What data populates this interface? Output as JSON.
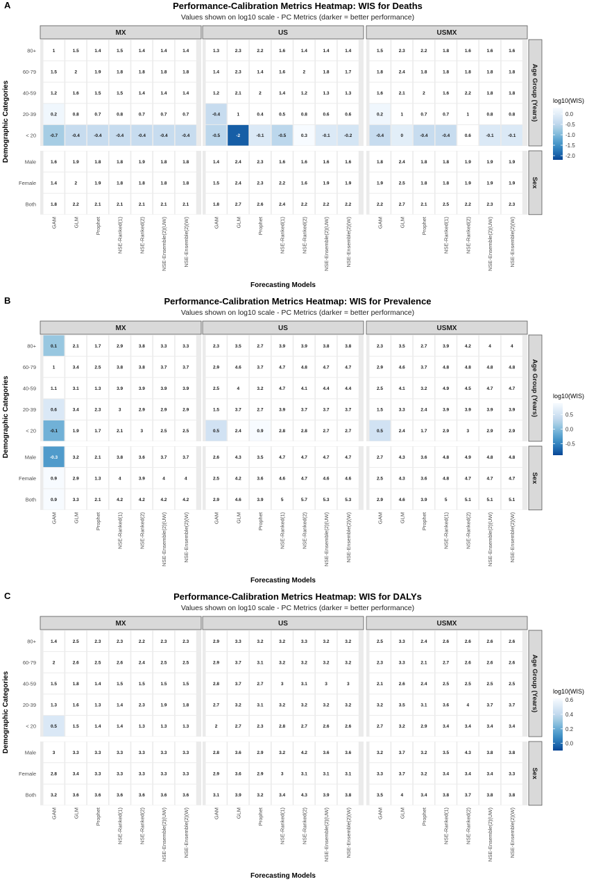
{
  "chart_data": [
    {
      "type": "heatmap",
      "panel_letter": "A",
      "title": "Performance-Calibration Metrics Heatmap: WIS for Deaths",
      "subtitle": "Values shown on log10 scale - PC Metrics (darker = better performance)",
      "xlabel": "Forecasting Models",
      "ylabel": "Demographic Categories",
      "legend_title": "log10(WIS)",
      "legend_ticks": [
        "0.0",
        "-0.5",
        "-1.0",
        "-1.5",
        "-2.0"
      ],
      "range": [
        -2.2,
        0.3
      ],
      "facets": [
        "MX",
        "US",
        "USMX"
      ],
      "row_groups": [
        {
          "label": "Age Group (Years)",
          "rows": [
            "80+",
            "60-79",
            "40-59",
            "20-39",
            "< 20"
          ]
        },
        {
          "label": "Sex",
          "rows": [
            "Male",
            "Female",
            "Both"
          ]
        }
      ],
      "models": [
        "GAM",
        "GLM",
        "Prophet",
        "NSE-Ranked(1)",
        "NSE-Ranked(2)",
        "NSE-Ensemble(2)(UW)",
        "NSE-Ensemble(2)(W)"
      ],
      "values": {
        "MX": [
          [
            1,
            1.5,
            1.4,
            1.5,
            1.4,
            1.4,
            1.4
          ],
          [
            1.5,
            2,
            1.9,
            1.8,
            1.8,
            1.8,
            1.8
          ],
          [
            1.2,
            1.6,
            1.5,
            1.5,
            1.4,
            1.4,
            1.4
          ],
          [
            0.2,
            0.8,
            0.7,
            0.8,
            0.7,
            0.7,
            0.7
          ],
          [
            -0.7,
            -0.4,
            -0.4,
            -0.4,
            -0.4,
            -0.4,
            -0.4
          ],
          [
            1.6,
            1.9,
            1.8,
            1.8,
            1.9,
            1.8,
            1.8
          ],
          [
            1.4,
            2,
            1.9,
            1.8,
            1.8,
            1.8,
            1.8
          ],
          [
            1.8,
            2.2,
            2.1,
            2.1,
            2.1,
            2.1,
            2.1
          ]
        ],
        "US": [
          [
            1.3,
            2.3,
            2.2,
            1.6,
            1.4,
            1.4,
            1.4
          ],
          [
            1.4,
            2.3,
            1.4,
            1.6,
            2,
            1.8,
            1.7
          ],
          [
            1.2,
            2.1,
            2,
            1.4,
            1.2,
            1.3,
            1.3
          ],
          [
            -0.4,
            1,
            0.4,
            0.5,
            0.8,
            0.6,
            0.6
          ],
          [
            -0.5,
            -2,
            -0.1,
            -0.5,
            0.3,
            -0.1,
            -0.2
          ],
          [
            1.4,
            2.4,
            2.3,
            1.6,
            1.6,
            1.6,
            1.6
          ],
          [
            1.5,
            2.4,
            2.3,
            2.2,
            1.6,
            1.9,
            1.9
          ],
          [
            1.8,
            2.7,
            2.6,
            2.4,
            2.2,
            2.2,
            2.2
          ]
        ],
        "USMX": [
          [
            1.5,
            2.3,
            2.2,
            1.8,
            1.6,
            1.6,
            1.6
          ],
          [
            1.8,
            2.4,
            1.8,
            1.8,
            1.8,
            1.8,
            1.8
          ],
          [
            1.6,
            2.1,
            2,
            1.6,
            2.2,
            1.8,
            1.8
          ],
          [
            0.2,
            1,
            0.7,
            0.7,
            1,
            0.8,
            0.8
          ],
          [
            -0.4,
            0,
            -0.4,
            -0.4,
            0.6,
            -0.1,
            -0.1
          ],
          [
            1.8,
            2.4,
            1.8,
            1.8,
            1.9,
            1.9,
            1.9
          ],
          [
            1.9,
            2.5,
            1.8,
            1.8,
            1.9,
            1.9,
            1.9
          ],
          [
            2.2,
            2.7,
            2.1,
            2.5,
            2.2,
            2.3,
            2.3
          ]
        ]
      }
    },
    {
      "type": "heatmap",
      "panel_letter": "B",
      "title": "Performance-Calibration Metrics Heatmap: WIS for Prevalence",
      "subtitle": "Values shown on log10 scale - PC Metrics (darker = better performance)",
      "xlabel": "Forecasting Models",
      "ylabel": "Demographic Categories",
      "legend_title": "log10(WIS)",
      "legend_ticks": [
        "0.5",
        "0.0",
        "-0.5"
      ],
      "range": [
        -0.9,
        0.9
      ],
      "facets": [
        "MX",
        "US",
        "USMX"
      ],
      "row_groups": [
        {
          "label": "Age Group (Years)",
          "rows": [
            "80+",
            "60-79",
            "40-59",
            "20-39",
            "< 20"
          ]
        },
        {
          "label": "Sex",
          "rows": [
            "Male",
            "Female",
            "Both"
          ]
        }
      ],
      "models": [
        "GAM",
        "GLM",
        "Prophet",
        "NSE-Ranked(1)",
        "NSE-Ranked(2)",
        "NSE-Ensemble(2)(UW)",
        "NSE-Ensemble(2)(W)"
      ],
      "values": {
        "MX": [
          [
            0.1,
            2.1,
            1.7,
            2.9,
            3.8,
            3.3,
            3.3
          ],
          [
            1,
            3.4,
            2.5,
            3.8,
            3.8,
            3.7,
            3.7
          ],
          [
            1.1,
            3.1,
            1.3,
            3.9,
            3.9,
            3.9,
            3.9
          ],
          [
            0.6,
            3.4,
            2.3,
            3,
            2.9,
            2.9,
            2.9
          ],
          [
            -0.1,
            1.9,
            1.7,
            2.1,
            3,
            2.5,
            2.5
          ],
          [
            -0.3,
            3.2,
            2.1,
            3.8,
            3.6,
            3.7,
            3.7
          ],
          [
            0.9,
            2.9,
            1.3,
            4,
            3.9,
            4,
            4
          ],
          [
            0.9,
            3.3,
            2.1,
            4.2,
            4.2,
            4.2,
            4.2
          ]
        ],
        "US": [
          [
            2.3,
            3.5,
            2.7,
            3.9,
            3.9,
            3.8,
            3.8
          ],
          [
            2.9,
            4.6,
            3.7,
            4.7,
            4.8,
            4.7,
            4.7
          ],
          [
            2.5,
            4,
            3.2,
            4.7,
            4.1,
            4.4,
            4.4
          ],
          [
            1.5,
            3.7,
            2.7,
            3.9,
            3.7,
            3.7,
            3.7
          ],
          [
            0.5,
            2.4,
            0.9,
            2.8,
            2.8,
            2.7,
            2.7
          ],
          [
            2.6,
            4.3,
            3.5,
            4.7,
            4.7,
            4.7,
            4.7
          ],
          [
            2.5,
            4.2,
            3.6,
            4.6,
            4.7,
            4.6,
            4.6
          ],
          [
            2.9,
            4.6,
            3.9,
            5,
            5.7,
            5.3,
            5.3
          ]
        ],
        "USMX": [
          [
            2.3,
            3.5,
            2.7,
            3.9,
            4.2,
            4,
            4
          ],
          [
            2.9,
            4.6,
            3.7,
            4.8,
            4.8,
            4.8,
            4.8
          ],
          [
            2.5,
            4.1,
            3.2,
            4.9,
            4.5,
            4.7,
            4.7
          ],
          [
            1.5,
            3.3,
            2.4,
            3.9,
            3.9,
            3.9,
            3.9
          ],
          [
            0.5,
            2.4,
            1.7,
            2.9,
            3,
            2.9,
            2.9
          ],
          [
            2.7,
            4.3,
            3.6,
            4.8,
            4.9,
            4.8,
            4.8
          ],
          [
            2.5,
            4.3,
            3.6,
            4.8,
            4.7,
            4.7,
            4.7
          ],
          [
            2.9,
            4.6,
            3.9,
            5,
            5.1,
            5.1,
            5.1
          ]
        ]
      }
    },
    {
      "type": "heatmap",
      "panel_letter": "C",
      "title": "Performance-Calibration Metrics Heatmap: WIS for DALYs",
      "subtitle": "Values shown on log10 scale - PC Metrics (darker = better performance)",
      "xlabel": "Forecasting Models",
      "ylabel": "Demographic Categories",
      "legend_title": "log10(WIS)",
      "legend_ticks": [
        "0.6",
        "0.4",
        "0.2",
        "0.0"
      ],
      "range": [
        -0.1,
        0.62
      ],
      "facets": [
        "MX",
        "US",
        "USMX"
      ],
      "row_groups": [
        {
          "label": "Age Group (Years)",
          "rows": [
            "80+",
            "60-79",
            "40-59",
            "20-39",
            "< 20"
          ]
        },
        {
          "label": "Sex",
          "rows": [
            "Male",
            "Female",
            "Both"
          ]
        }
      ],
      "models": [
        "GAM",
        "GLM",
        "Prophet",
        "NSE-Ranked(1)",
        "NSE-Ranked(2)",
        "NSE-Ensemble(2)(UW)",
        "NSE-Ensemble(2)(W)"
      ],
      "values": {
        "MX": [
          [
            1.4,
            2.5,
            2.3,
            2.3,
            2.2,
            2.3,
            2.3
          ],
          [
            2,
            2.6,
            2.5,
            2.6,
            2.4,
            2.5,
            2.5
          ],
          [
            1.5,
            1.8,
            1.4,
            1.5,
            1.5,
            1.5,
            1.5
          ],
          [
            1.3,
            1.6,
            1.3,
            1.4,
            2.3,
            1.9,
            1.8
          ],
          [
            0.5,
            1.5,
            1.4,
            1.4,
            1.3,
            1.3,
            1.3
          ],
          [
            3,
            3.3,
            3.3,
            3.3,
            3.3,
            3.3,
            3.3
          ],
          [
            2.8,
            3.4,
            3.3,
            3.3,
            3.3,
            3.3,
            3.3
          ],
          [
            3.2,
            3.6,
            3.6,
            3.6,
            3.6,
            3.6,
            3.6
          ]
        ],
        "US": [
          [
            2.9,
            3.3,
            3.2,
            3.2,
            3.3,
            3.2,
            3.2
          ],
          [
            2.9,
            3.7,
            3.1,
            3.2,
            3.2,
            3.2,
            3.2
          ],
          [
            2.8,
            3.7,
            2.7,
            3,
            3.1,
            3,
            3
          ],
          [
            2.7,
            3.2,
            3.1,
            3.2,
            3.2,
            3.2,
            3.2
          ],
          [
            2,
            2.7,
            2.3,
            2.8,
            2.7,
            2.6,
            2.6
          ],
          [
            2.8,
            3.6,
            2.9,
            3.2,
            4.2,
            3.6,
            3.6
          ],
          [
            2.9,
            3.6,
            2.9,
            3,
            3.1,
            3.1,
            3.1
          ],
          [
            3.1,
            3.9,
            3.2,
            3.4,
            4.3,
            3.9,
            3.8
          ]
        ],
        "USMX": [
          [
            2.5,
            3.3,
            2.4,
            2.6,
            2.6,
            2.6,
            2.6
          ],
          [
            2.3,
            3.3,
            2.1,
            2.7,
            2.6,
            2.6,
            2.6
          ],
          [
            2.1,
            2.6,
            2.4,
            2.5,
            2.5,
            2.5,
            2.5
          ],
          [
            3.2,
            3.5,
            3.1,
            3.6,
            4,
            3.7,
            3.7
          ],
          [
            2.7,
            3.2,
            2.9,
            3.4,
            3.4,
            3.4,
            3.4
          ],
          [
            3.2,
            3.7,
            3.2,
            3.5,
            4.3,
            3.8,
            3.8
          ],
          [
            3.3,
            3.7,
            3.2,
            3.4,
            3.4,
            3.4,
            3.3
          ],
          [
            3.5,
            4,
            3.4,
            3.8,
            3.7,
            3.8,
            3.8
          ]
        ]
      }
    }
  ]
}
